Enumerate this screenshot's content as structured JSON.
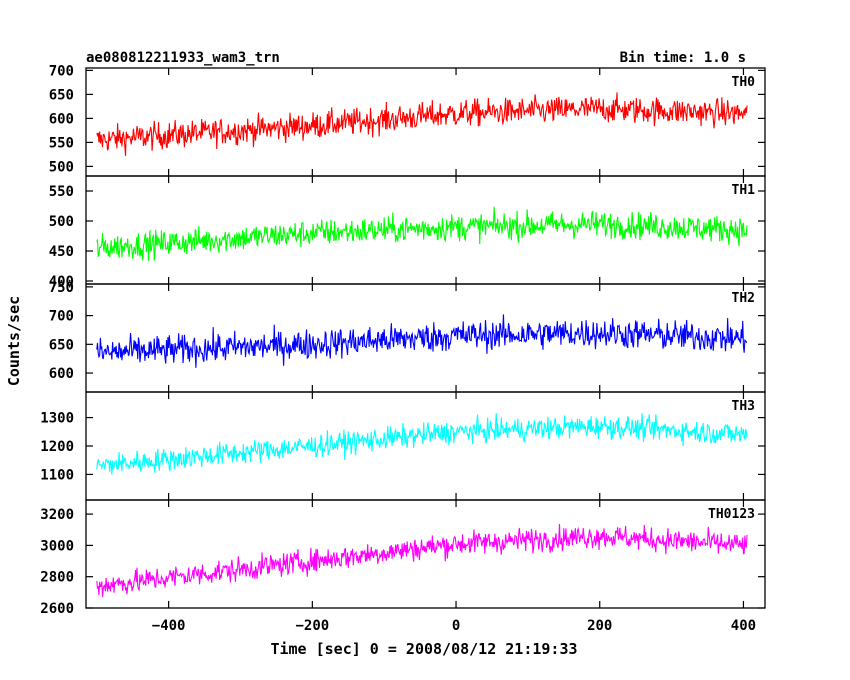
{
  "header": {
    "title": "ae080812211933_wam3_trn",
    "bin_time": "Bin time: 1.0 s"
  },
  "chart_data": {
    "type": "line",
    "xlabel": "Time [sec] 0 = 2008/08/12 21:19:33",
    "ylabel": "Counts/sec",
    "xlim": [
      -515,
      430
    ],
    "x_range": [
      -500,
      405
    ],
    "x_ticks": [
      -400,
      -200,
      0,
      200,
      400
    ],
    "x_tick_labels": [
      "−400",
      "−200",
      "0",
      "200",
      "400"
    ],
    "panels": [
      {
        "name": "TH0",
        "color": "#ff0000",
        "ylim": [
          480,
          705
        ],
        "y_ticks": [
          500,
          550,
          600,
          650,
          700
        ],
        "trend": [
          [
            -500,
            555
          ],
          [
            -200,
            585
          ],
          [
            0,
            610
          ],
          [
            200,
            620
          ],
          [
            405,
            610
          ]
        ],
        "noise": 28
      },
      {
        "name": "TH1",
        "color": "#00ff00",
        "ylim": [
          395,
          575
        ],
        "y_ticks": [
          400,
          450,
          500,
          550
        ],
        "trend": [
          [
            -500,
            455
          ],
          [
            -200,
            480
          ],
          [
            0,
            490
          ],
          [
            200,
            495
          ],
          [
            405,
            485
          ]
        ],
        "noise": 22
      },
      {
        "name": "TH2",
        "color": "#0000ff",
        "ylim": [
          567,
          755
        ],
        "y_ticks": [
          600,
          650,
          700,
          750
        ],
        "trend": [
          [
            -500,
            635
          ],
          [
            -200,
            650
          ],
          [
            0,
            665
          ],
          [
            200,
            670
          ],
          [
            405,
            660
          ]
        ],
        "noise": 26
      },
      {
        "name": "TH3",
        "color": "#00ffff",
        "ylim": [
          1010,
          1390
        ],
        "y_ticks": [
          1100,
          1200,
          1300
        ],
        "trend": [
          [
            -500,
            1130
          ],
          [
            -200,
            1200
          ],
          [
            0,
            1250
          ],
          [
            200,
            1270
          ],
          [
            405,
            1240
          ]
        ],
        "noise": 40
      },
      {
        "name": "TH0123",
        "color": "#ff00ff",
        "ylim": [
          2600,
          3290
        ],
        "y_ticks": [
          2600,
          2800,
          3000,
          3200
        ],
        "trend": [
          [
            -500,
            2740
          ],
          [
            -200,
            2900
          ],
          [
            0,
            3010
          ],
          [
            200,
            3060
          ],
          [
            405,
            3000
          ]
        ],
        "noise": 75
      }
    ]
  }
}
